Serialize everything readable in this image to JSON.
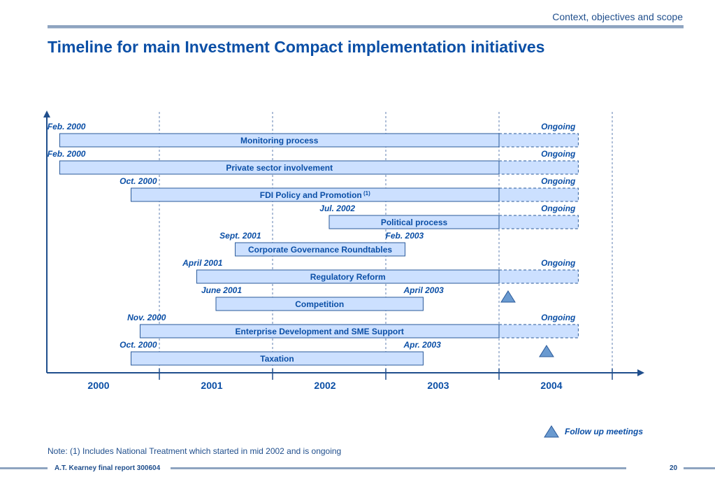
{
  "header": {
    "section": "Context, objectives and scope",
    "title": "Timeline for main Investment Compact implementation initiatives"
  },
  "chart_data": {
    "type": "gantt",
    "x_axis": {
      "tick_labels": [
        "2000",
        "2001",
        "2002",
        "2003",
        "2004"
      ],
      "range": [
        2000.0,
        2005.1
      ]
    },
    "grid": "vertical dashed lines at year boundaries",
    "tasks": [
      {
        "label": "Monitoring process",
        "start_label": "Feb. 2000",
        "end_label": "Ongoing",
        "start": 2000.12,
        "end": 2004.0,
        "ongoing_until": 2004.7,
        "follow_up_meeting": false
      },
      {
        "label": "Private sector involvement",
        "start_label": "Feb. 2000",
        "end_label": "Ongoing",
        "start": 2000.12,
        "end": 2004.0,
        "ongoing_until": 2004.7,
        "follow_up_meeting": false
      },
      {
        "label": "FDI Policy and Promotion",
        "label_sup": "(1)",
        "start_label": "Oct. 2000",
        "end_label": "Ongoing",
        "start": 2000.75,
        "end": 2004.0,
        "ongoing_until": 2004.7,
        "follow_up_meeting": false
      },
      {
        "label": "Political process",
        "start_label": "Jul. 2002",
        "end_label": "Ongoing",
        "start": 2002.5,
        "end": 2004.0,
        "ongoing_until": 2004.7,
        "follow_up_meeting": false
      },
      {
        "label": "Corporate Governance Roundtables",
        "start_label": "Sept. 2001",
        "end_label": "Feb. 2003",
        "start": 2001.67,
        "end": 2003.17,
        "ongoing_until": null,
        "follow_up_meeting": false
      },
      {
        "label": "Regulatory Reform",
        "start_label": "April 2001",
        "end_label": "Ongoing",
        "start": 2001.33,
        "end": 2004.0,
        "ongoing_until": 2004.7,
        "follow_up_meeting": false
      },
      {
        "label": "Competition",
        "start_label": "June 2001",
        "end_label": "April 2003",
        "start": 2001.5,
        "end": 2003.33,
        "ongoing_until": null,
        "follow_up_meeting": true
      },
      {
        "label": "Enterprise Development and SME Support",
        "start_label": "Nov. 2000",
        "end_label": "Ongoing",
        "start": 2000.83,
        "end": 2004.0,
        "ongoing_until": 2004.7,
        "follow_up_meeting": false
      },
      {
        "label": "Taxation",
        "start_label": "Oct. 2000",
        "end_label": "Apr. 2003",
        "start": 2000.75,
        "end": 2003.33,
        "ongoing_until": null,
        "follow_up_meeting": true
      }
    ],
    "colors": {
      "bar_fill": "#cce0ff",
      "bar_stroke": "#2a5a9a",
      "label_text": "#0b4fa6",
      "axis": "#1f4e8c",
      "triangle": "#6a9ad0"
    }
  },
  "legend": {
    "follow_up_label": "Follow up meetings"
  },
  "note": "Note: (1) Includes National Treatment which started in mid 2002 and is ongoing",
  "footer": {
    "report": "A.T. Kearney final report 300604",
    "page": "20"
  }
}
